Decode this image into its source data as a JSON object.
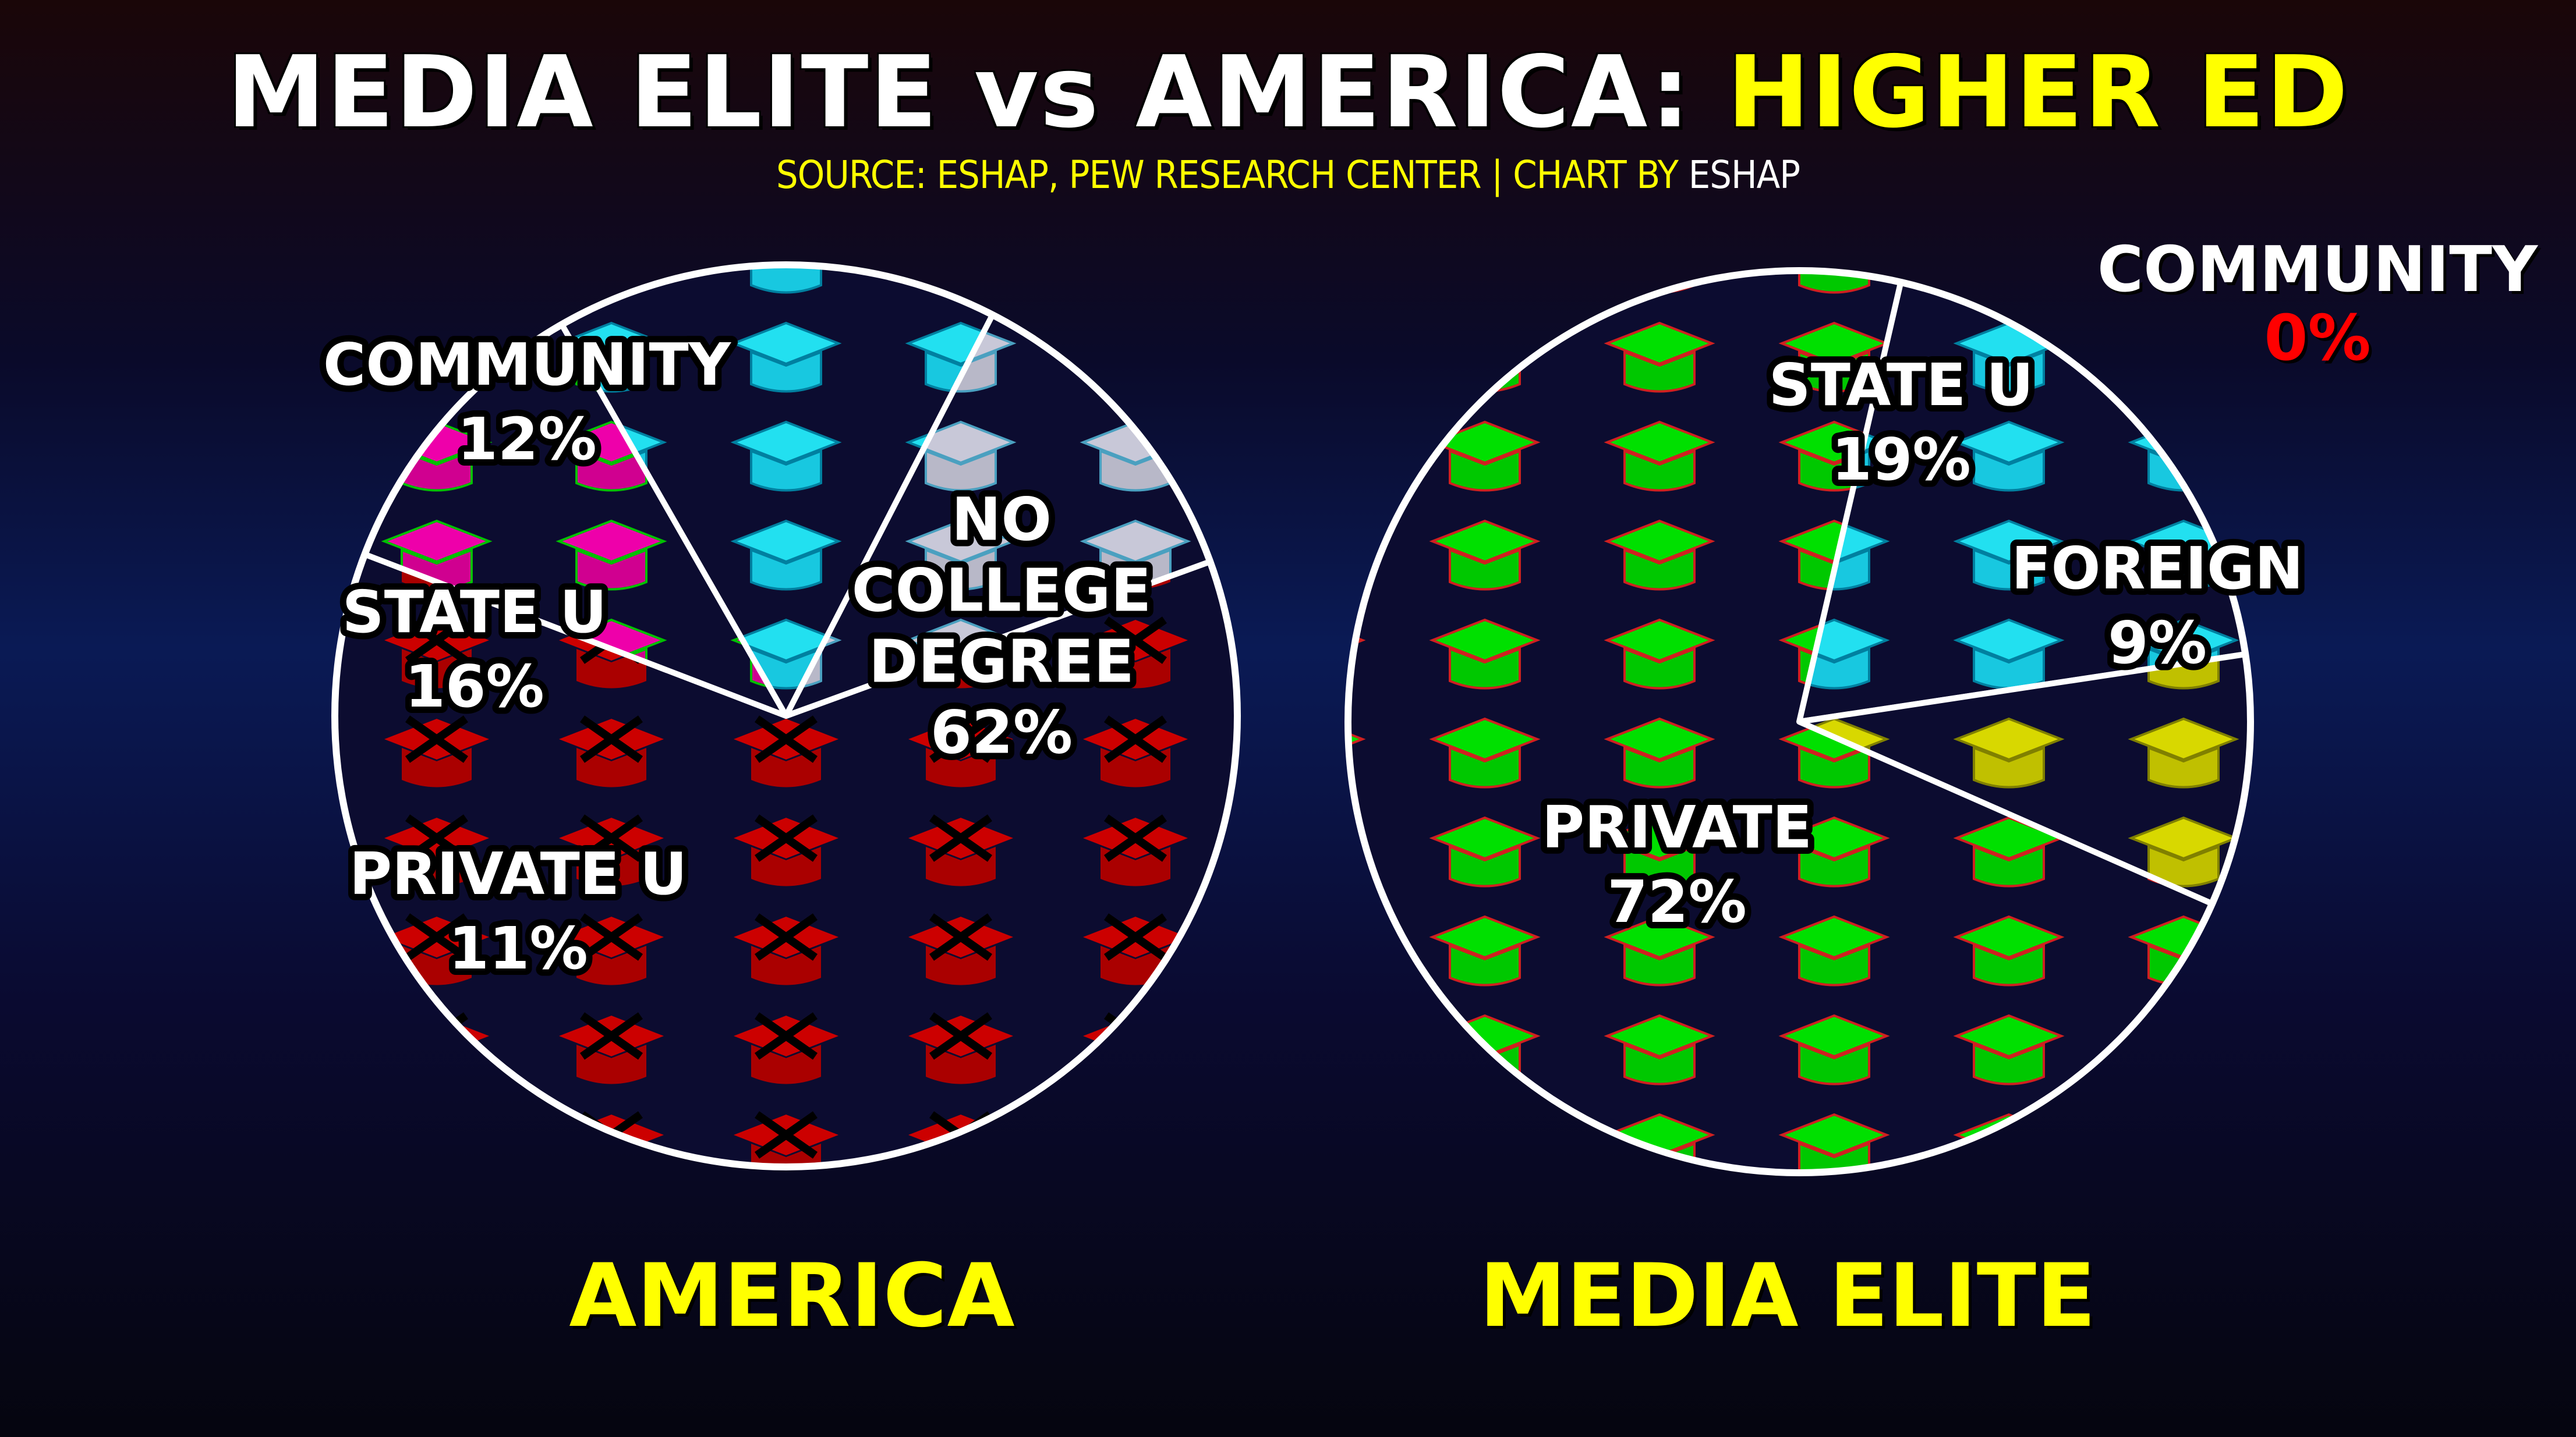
{
  "title": {
    "main": "MEDIA ELITE vs AMERICA:",
    "highlight": "HIGHER ED"
  },
  "subtitle": {
    "source": "SOURCE: ESHAP, PEW RESEARCH CENTER | CHART BY",
    "author": "ESHAP"
  },
  "colors": {
    "background": "#0a1a55",
    "no_college": "#cc0000",
    "community": "#c8c8d8",
    "state_u": "#22e0f0",
    "private_u_america": "#ee00aa",
    "private_media": "#00e000",
    "foreign": "#d8d800",
    "title_highlight": "#ffff00",
    "zero_value": "#ff0000"
  },
  "chart_data": [
    {
      "type": "pie",
      "title": "AMERICA",
      "slices": [
        {
          "label": "NO COLLEGE DEGREE",
          "lines": [
            "NO",
            "COLLEGE",
            "DEGREE"
          ],
          "value": 62,
          "value_text": "62%",
          "color": "#cc0000",
          "icon": "crossed-graduation-cap-icon"
        },
        {
          "label": "PRIVATE U",
          "lines": [
            "PRIVATE U"
          ],
          "value": 11,
          "value_text": "11%",
          "color": "#ee00aa",
          "icon": "graduation-cap-icon"
        },
        {
          "label": "STATE U",
          "lines": [
            "STATE U"
          ],
          "value": 16,
          "value_text": "16%",
          "color": "#22e0f0",
          "icon": "graduation-cap-icon"
        },
        {
          "label": "COMMUNITY",
          "lines": [
            "COMMUNITY"
          ],
          "value": 12,
          "value_text": "12%",
          "color": "#c8c8d8",
          "icon": "graduation-cap-icon"
        }
      ]
    },
    {
      "type": "pie",
      "title": "MEDIA ELITE",
      "slices": [
        {
          "label": "STATE U",
          "lines": [
            "STATE U"
          ],
          "value": 19,
          "value_text": "19%",
          "color": "#22e0f0",
          "icon": "graduation-cap-icon"
        },
        {
          "label": "FOREIGN",
          "lines": [
            "FOREIGN"
          ],
          "value": 9,
          "value_text": "9%",
          "color": "#d8d800",
          "icon": "graduation-cap-icon"
        },
        {
          "label": "PRIVATE",
          "lines": [
            "PRIVATE"
          ],
          "value": 72,
          "value_text": "72%",
          "color": "#00e000",
          "icon": "graduation-cap-icon"
        },
        {
          "label": "COMMUNITY",
          "lines": [
            "COMMUNITY"
          ],
          "value": 0,
          "value_text": "0%",
          "color": "#ff0000"
        }
      ]
    }
  ]
}
